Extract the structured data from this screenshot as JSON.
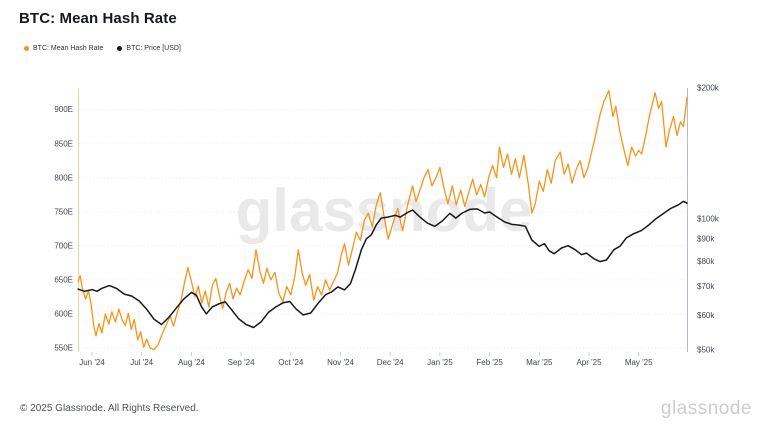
{
  "header": {
    "title": "BTC: Mean Hash Rate"
  },
  "legend": [
    {
      "label": "BTC: Mean Hash Rate",
      "color": "#f7931a"
    },
    {
      "label": "BTC: Price [USD]",
      "color": "#16181c"
    }
  ],
  "watermark": "glassnode",
  "footer": {
    "copyright": "© 2025 Glassnode. All Rights Reserved.",
    "brand": "glassnode"
  },
  "chart_data": {
    "type": "line",
    "title": "BTC: Mean Hash Rate",
    "x_unit": "months since Jun 1 2024",
    "grid": "horizontal-dotted",
    "legend_position": "top-left",
    "x_ticks": [
      {
        "t": 0,
        "label": "Jun '24"
      },
      {
        "t": 1,
        "label": "Jul '24"
      },
      {
        "t": 2,
        "label": "Aug '24"
      },
      {
        "t": 3,
        "label": "Sep '24"
      },
      {
        "t": 4,
        "label": "Oct '24"
      },
      {
        "t": 5,
        "label": "Nov '24"
      },
      {
        "t": 6,
        "label": "Dec '24"
      },
      {
        "t": 7,
        "label": "Jan '25"
      },
      {
        "t": 8,
        "label": "Feb '25"
      },
      {
        "t": 9,
        "label": "Mar '25"
      },
      {
        "t": 10,
        "label": "Apr '25"
      },
      {
        "t": 11,
        "label": "May '25"
      }
    ],
    "left_axis": {
      "unit": "EH/s",
      "scale": "linear",
      "range": [
        542,
        935
      ],
      "ticks": [
        {
          "v": 900,
          "label": "900E"
        },
        {
          "v": 850,
          "label": "850E"
        },
        {
          "v": 800,
          "label": "800E"
        },
        {
          "v": 750,
          "label": "750E"
        },
        {
          "v": 700,
          "label": "700E"
        },
        {
          "v": 650,
          "label": "650E"
        },
        {
          "v": 600,
          "label": "600E"
        },
        {
          "v": 550,
          "label": "550E"
        }
      ]
    },
    "right_axis": {
      "unit": "USD (thousands)",
      "scale": "log",
      "range": [
        48,
        205
      ],
      "ticks": [
        {
          "v": 200,
          "label": "$200k"
        },
        {
          "v": 100,
          "label": "$100k"
        },
        {
          "v": 90,
          "label": "$90k"
        },
        {
          "v": 80,
          "label": "$80k"
        },
        {
          "v": 70,
          "label": "$70k"
        },
        {
          "v": 60,
          "label": "$60k"
        },
        {
          "v": 50,
          "label": "$50k"
        }
      ]
    },
    "series": [
      {
        "name": "BTC: Mean Hash Rate",
        "axis": "left",
        "color": "#f7931a",
        "points": [
          [
            -0.28,
            648
          ],
          [
            -0.24,
            656
          ],
          [
            -0.19,
            636
          ],
          [
            -0.13,
            622
          ],
          [
            -0.07,
            634
          ],
          [
            -0.02,
            615
          ],
          [
            0.04,
            580
          ],
          [
            0.08,
            568
          ],
          [
            0.14,
            586
          ],
          [
            0.2,
            572
          ],
          [
            0.27,
            600
          ],
          [
            0.34,
            585
          ],
          [
            0.4,
            603
          ],
          [
            0.47,
            588
          ],
          [
            0.54,
            607
          ],
          [
            0.61,
            591
          ],
          [
            0.67,
            583
          ],
          [
            0.73,
            601
          ],
          [
            0.79,
            577
          ],
          [
            0.85,
            592
          ],
          [
            0.92,
            562
          ],
          [
            0.98,
            574
          ],
          [
            1.04,
            551
          ],
          [
            1.1,
            563
          ],
          [
            1.17,
            550
          ],
          [
            1.25,
            548
          ],
          [
            1.33,
            555
          ],
          [
            1.42,
            572
          ],
          [
            1.5,
            585
          ],
          [
            1.57,
            597
          ],
          [
            1.64,
            582
          ],
          [
            1.71,
            601
          ],
          [
            1.79,
            620
          ],
          [
            1.86,
            645
          ],
          [
            1.93,
            668
          ],
          [
            2.0,
            648
          ],
          [
            2.07,
            625
          ],
          [
            2.14,
            641
          ],
          [
            2.21,
            616
          ],
          [
            2.28,
            634
          ],
          [
            2.35,
            610
          ],
          [
            2.42,
            642
          ],
          [
            2.49,
            652
          ],
          [
            2.56,
            628
          ],
          [
            2.63,
            608
          ],
          [
            2.7,
            632
          ],
          [
            2.77,
            645
          ],
          [
            2.84,
            622
          ],
          [
            2.91,
            638
          ],
          [
            2.98,
            628
          ],
          [
            3.06,
            648
          ],
          [
            3.14,
            665
          ],
          [
            3.22,
            652
          ],
          [
            3.3,
            694
          ],
          [
            3.38,
            662
          ],
          [
            3.45,
            645
          ],
          [
            3.52,
            667
          ],
          [
            3.6,
            650
          ],
          [
            3.68,
            661
          ],
          [
            3.76,
            630
          ],
          [
            3.84,
            618
          ],
          [
            3.92,
            640
          ],
          [
            4.0,
            628
          ],
          [
            4.08,
            655
          ],
          [
            4.15,
            694
          ],
          [
            4.23,
            660
          ],
          [
            4.3,
            642
          ],
          [
            4.38,
            658
          ],
          [
            4.46,
            620
          ],
          [
            4.54,
            640
          ],
          [
            4.62,
            628
          ],
          [
            4.7,
            650
          ],
          [
            4.78,
            635
          ],
          [
            4.86,
            648
          ],
          [
            4.94,
            660
          ],
          [
            5.02,
            688
          ],
          [
            5.08,
            703
          ],
          [
            5.16,
            672
          ],
          [
            5.24,
            695
          ],
          [
            5.32,
            720
          ],
          [
            5.4,
            708
          ],
          [
            5.48,
            738
          ],
          [
            5.56,
            748
          ],
          [
            5.64,
            728
          ],
          [
            5.72,
            760
          ],
          [
            5.8,
            778
          ],
          [
            5.88,
            742
          ],
          [
            5.96,
            710
          ],
          [
            6.05,
            732
          ],
          [
            6.15,
            755
          ],
          [
            6.25,
            722
          ],
          [
            6.35,
            760
          ],
          [
            6.45,
            788
          ],
          [
            6.52,
            765
          ],
          [
            6.6,
            782
          ],
          [
            6.68,
            800
          ],
          [
            6.76,
            812
          ],
          [
            6.84,
            788
          ],
          [
            6.92,
            800
          ],
          [
            7.0,
            815
          ],
          [
            7.08,
            785
          ],
          [
            7.16,
            762
          ],
          [
            7.25,
            788
          ],
          [
            7.33,
            760
          ],
          [
            7.42,
            782
          ],
          [
            7.5,
            758
          ],
          [
            7.58,
            778
          ],
          [
            7.66,
            798
          ],
          [
            7.74,
            775
          ],
          [
            7.82,
            790
          ],
          [
            7.9,
            772
          ],
          [
            7.98,
            800
          ],
          [
            8.06,
            818
          ],
          [
            8.14,
            800
          ],
          [
            8.2,
            845
          ],
          [
            8.28,
            815
          ],
          [
            8.36,
            835
          ],
          [
            8.44,
            805
          ],
          [
            8.52,
            828
          ],
          [
            8.6,
            800
          ],
          [
            8.69,
            833
          ],
          [
            8.78,
            790
          ],
          [
            8.85,
            748
          ],
          [
            8.92,
            762
          ],
          [
            9.0,
            795
          ],
          [
            9.08,
            780
          ],
          [
            9.16,
            812
          ],
          [
            9.24,
            792
          ],
          [
            9.32,
            825
          ],
          [
            9.42,
            838
          ],
          [
            9.5,
            805
          ],
          [
            9.58,
            820
          ],
          [
            9.66,
            792
          ],
          [
            9.74,
            812
          ],
          [
            9.82,
            825
          ],
          [
            9.9,
            800
          ],
          [
            9.98,
            815
          ],
          [
            10.06,
            840
          ],
          [
            10.14,
            865
          ],
          [
            10.22,
            892
          ],
          [
            10.3,
            912
          ],
          [
            10.4,
            928
          ],
          [
            10.48,
            890
          ],
          [
            10.54,
            905
          ],
          [
            10.62,
            868
          ],
          [
            10.7,
            842
          ],
          [
            10.78,
            818
          ],
          [
            10.86,
            845
          ],
          [
            10.94,
            832
          ],
          [
            11.0,
            840
          ],
          [
            11.06,
            835
          ],
          [
            11.14,
            862
          ],
          [
            11.22,
            892
          ],
          [
            11.33,
            925
          ],
          [
            11.4,
            902
          ],
          [
            11.46,
            912
          ],
          [
            11.55,
            845
          ],
          [
            11.62,
            870
          ],
          [
            11.7,
            890
          ],
          [
            11.77,
            862
          ],
          [
            11.84,
            882
          ],
          [
            11.9,
            875
          ],
          [
            11.94,
            898
          ],
          [
            11.97,
            918
          ]
        ]
      },
      {
        "name": "BTC: Price [USD]",
        "axis": "right",
        "color": "#16181c",
        "points": [
          [
            -0.28,
            69
          ],
          [
            -0.15,
            68.2
          ],
          [
            0.0,
            68.8
          ],
          [
            0.1,
            68.2
          ],
          [
            0.2,
            69.3
          ],
          [
            0.35,
            70.3
          ],
          [
            0.5,
            69.2
          ],
          [
            0.65,
            67.2
          ],
          [
            0.8,
            66.5
          ],
          [
            0.95,
            64.8
          ],
          [
            1.1,
            62
          ],
          [
            1.25,
            58.8
          ],
          [
            1.4,
            57.2
          ],
          [
            1.55,
            59.5
          ],
          [
            1.7,
            62.5
          ],
          [
            1.85,
            65.5
          ],
          [
            2.0,
            67.8
          ],
          [
            2.1,
            66.8
          ],
          [
            2.2,
            63
          ],
          [
            2.3,
            60.5
          ],
          [
            2.42,
            62.8
          ],
          [
            2.55,
            63.8
          ],
          [
            2.68,
            64.5
          ],
          [
            2.8,
            62
          ],
          [
            2.95,
            59
          ],
          [
            3.1,
            57.2
          ],
          [
            3.25,
            56.3
          ],
          [
            3.4,
            58
          ],
          [
            3.55,
            61
          ],
          [
            3.7,
            62.8
          ],
          [
            3.85,
            64.2
          ],
          [
            3.98,
            64.6
          ],
          [
            4.1,
            62.2
          ],
          [
            4.25,
            60.2
          ],
          [
            4.4,
            60.8
          ],
          [
            4.55,
            64
          ],
          [
            4.7,
            67
          ],
          [
            4.82,
            68
          ],
          [
            4.95,
            69.8
          ],
          [
            5.08,
            68.7
          ],
          [
            5.2,
            71
          ],
          [
            5.3,
            76.5
          ],
          [
            5.42,
            85
          ],
          [
            5.52,
            90
          ],
          [
            5.62,
            92
          ],
          [
            5.72,
            97
          ],
          [
            5.82,
            100.5
          ],
          [
            5.95,
            101
          ],
          [
            6.1,
            102
          ],
          [
            6.2,
            101
          ],
          [
            6.35,
            103.5
          ],
          [
            6.45,
            104.8
          ],
          [
            6.6,
            101
          ],
          [
            6.75,
            97.8
          ],
          [
            6.9,
            96.2
          ],
          [
            7.05,
            99
          ],
          [
            7.2,
            103
          ],
          [
            7.32,
            100.5
          ],
          [
            7.45,
            103.2
          ],
          [
            7.6,
            105.2
          ],
          [
            7.75,
            105.5
          ],
          [
            7.9,
            103.2
          ],
          [
            8.0,
            103.8
          ],
          [
            8.15,
            101
          ],
          [
            8.3,
            98.5
          ],
          [
            8.45,
            97.2
          ],
          [
            8.6,
            96.8
          ],
          [
            8.72,
            96.2
          ],
          [
            8.85,
            89.5
          ],
          [
            9.0,
            86.5
          ],
          [
            9.1,
            87.8
          ],
          [
            9.2,
            84.5
          ],
          [
            9.3,
            83.2
          ],
          [
            9.45,
            85.8
          ],
          [
            9.58,
            86.8
          ],
          [
            9.72,
            85
          ],
          [
            9.85,
            82.8
          ],
          [
            9.95,
            83.5
          ],
          [
            10.1,
            81
          ],
          [
            10.22,
            79.8
          ],
          [
            10.35,
            80.5
          ],
          [
            10.5,
            85
          ],
          [
            10.62,
            86.5
          ],
          [
            10.75,
            90.5
          ],
          [
            10.9,
            92.5
          ],
          [
            11.05,
            94
          ],
          [
            11.2,
            96.8
          ],
          [
            11.35,
            100.2
          ],
          [
            11.5,
            103
          ],
          [
            11.65,
            105.8
          ],
          [
            11.8,
            107.8
          ],
          [
            11.9,
            109.8
          ],
          [
            11.97,
            108.8
          ]
        ]
      }
    ]
  }
}
